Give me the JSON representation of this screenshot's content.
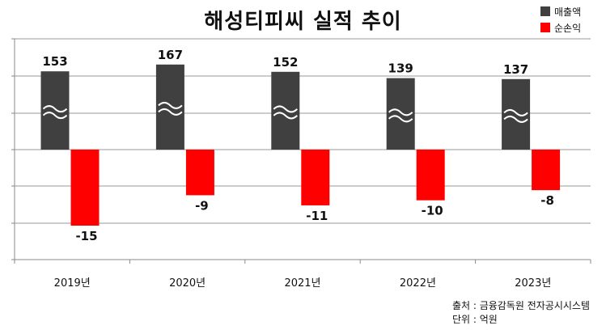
{
  "chart_data": {
    "type": "bar",
    "title": "해성티피씨 실적 추이",
    "categories": [
      "2019년",
      "2020년",
      "2021년",
      "2022년",
      "2023년"
    ],
    "series": [
      {
        "name": "매출액",
        "color": "#404040",
        "values": [
          153,
          167,
          152,
          139,
          137
        ],
        "axis_break": true
      },
      {
        "name": "순손익",
        "color": "#ff0000",
        "values": [
          -15,
          -9,
          -11,
          -10,
          -8
        ]
      }
    ],
    "data_labels": {
      "sales": [
        "153",
        "167",
        "152",
        "139",
        "137"
      ],
      "net": [
        "-15",
        "-9",
        "-11",
        "-10",
        "-8"
      ]
    },
    "xlabel": "",
    "ylabel": "",
    "grid": true,
    "legend": "top-right"
  },
  "footer": {
    "source": "출처 : 금융감독원 전자공시시스템",
    "unit": "단위 : 억원"
  }
}
